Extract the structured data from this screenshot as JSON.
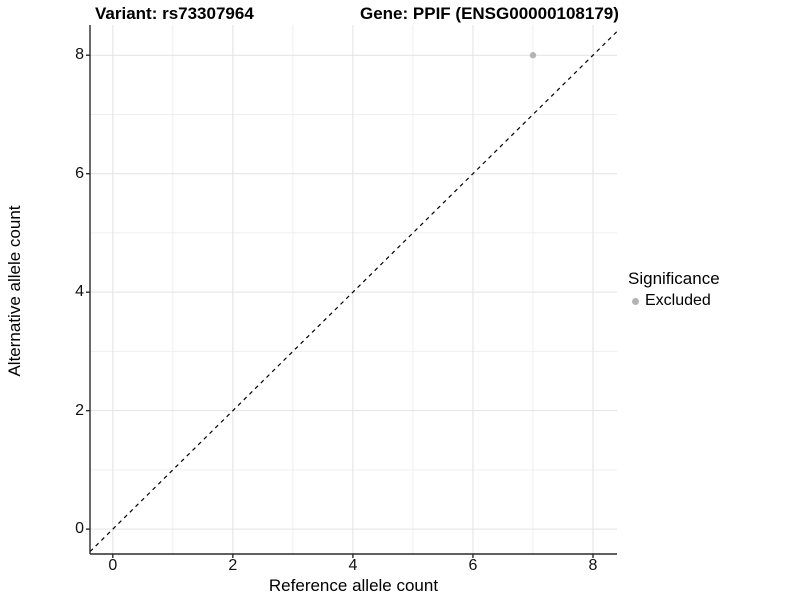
{
  "titles": {
    "variant": "Variant: rs73307964",
    "gene": "Gene: PPIF (ENSG00000108179)"
  },
  "legend": {
    "title": "Significance",
    "items": [
      {
        "label": "Excluded",
        "color": "#b4b4b4"
      }
    ]
  },
  "chart_data": {
    "type": "scatter",
    "title": "Variant: rs73307964    Gene: PPIF (ENSG00000108179)",
    "xlabel": "Reference allele count",
    "ylabel": "Alternative allele count",
    "xlim": [
      -0.38,
      8.4
    ],
    "ylim": [
      -0.42,
      8.51
    ],
    "x_major_ticks": [
      0,
      2,
      4,
      6,
      8
    ],
    "x_minor_ticks": [
      1,
      3,
      5,
      7
    ],
    "y_major_ticks": [
      0,
      2,
      4,
      6,
      8
    ],
    "y_minor_ticks": [
      1,
      3,
      5,
      7
    ],
    "grid": "major+minor",
    "legend_position": "right",
    "series": [
      {
        "name": "Excluded",
        "color": "#b4b4b4",
        "points": [
          {
            "x": 7,
            "y": 8
          }
        ]
      }
    ],
    "reference_line": {
      "type": "identity",
      "equation": "y = x",
      "style": "dashed",
      "color": "#000000"
    }
  },
  "colors": {
    "background": "#ffffff",
    "point": "#b4b4b4",
    "grid_major": "#e2e2e2",
    "grid_minor": "#efefef",
    "axis": "#2b2b2b",
    "reference_line": "#000000",
    "text": "#000000"
  }
}
